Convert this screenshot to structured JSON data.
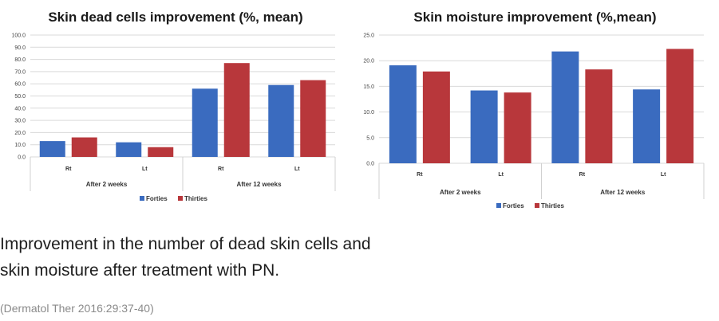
{
  "chart_data": [
    {
      "type": "bar",
      "title": "Skin dead cells improvement (%, mean)",
      "groups": [
        "After 2 weeks",
        "After 12 weeks"
      ],
      "categories": [
        "Rt",
        "Lt",
        "Rt",
        "Lt"
      ],
      "yticks": [
        "100.0",
        "90.0",
        "80.0",
        "70.0",
        "60.0",
        "50.0",
        "40.0",
        "30.0",
        "20.0",
        "10.0",
        "0.0"
      ],
      "ylim": [
        0,
        100
      ],
      "legend_position": "bottom",
      "grid": true,
      "series": [
        {
          "name": "Forties",
          "color": "#3a6bbf",
          "values": [
            13,
            12,
            56,
            59
          ]
        },
        {
          "name": "Thirties",
          "color": "#b8373b",
          "values": [
            16,
            8,
            77,
            63
          ]
        }
      ]
    },
    {
      "type": "bar",
      "title": "Skin moisture improvement (%,mean)",
      "groups": [
        "After 2 weeks",
        "After 12 weeks"
      ],
      "categories": [
        "Rt",
        "Lt",
        "Rt",
        "Lt"
      ],
      "yticks": [
        "25.0",
        "20.0",
        "15.0",
        "10.0",
        "5.0",
        "0.0"
      ],
      "ylim": [
        0,
        25
      ],
      "legend_position": "bottom",
      "grid": true,
      "series": [
        {
          "name": "Forties",
          "color": "#3a6bbf",
          "values": [
            19.1,
            14.2,
            21.8,
            14.4
          ]
        },
        {
          "name": "Thirties",
          "color": "#b8373b",
          "values": [
            17.9,
            13.8,
            18.3,
            22.3
          ]
        }
      ]
    }
  ],
  "caption_lines": [
    "Improvement in the number of dead skin cells and",
    "skin moisture after treatment with PN."
  ],
  "source": "(Dermatol Ther 2016:29:37-40)"
}
